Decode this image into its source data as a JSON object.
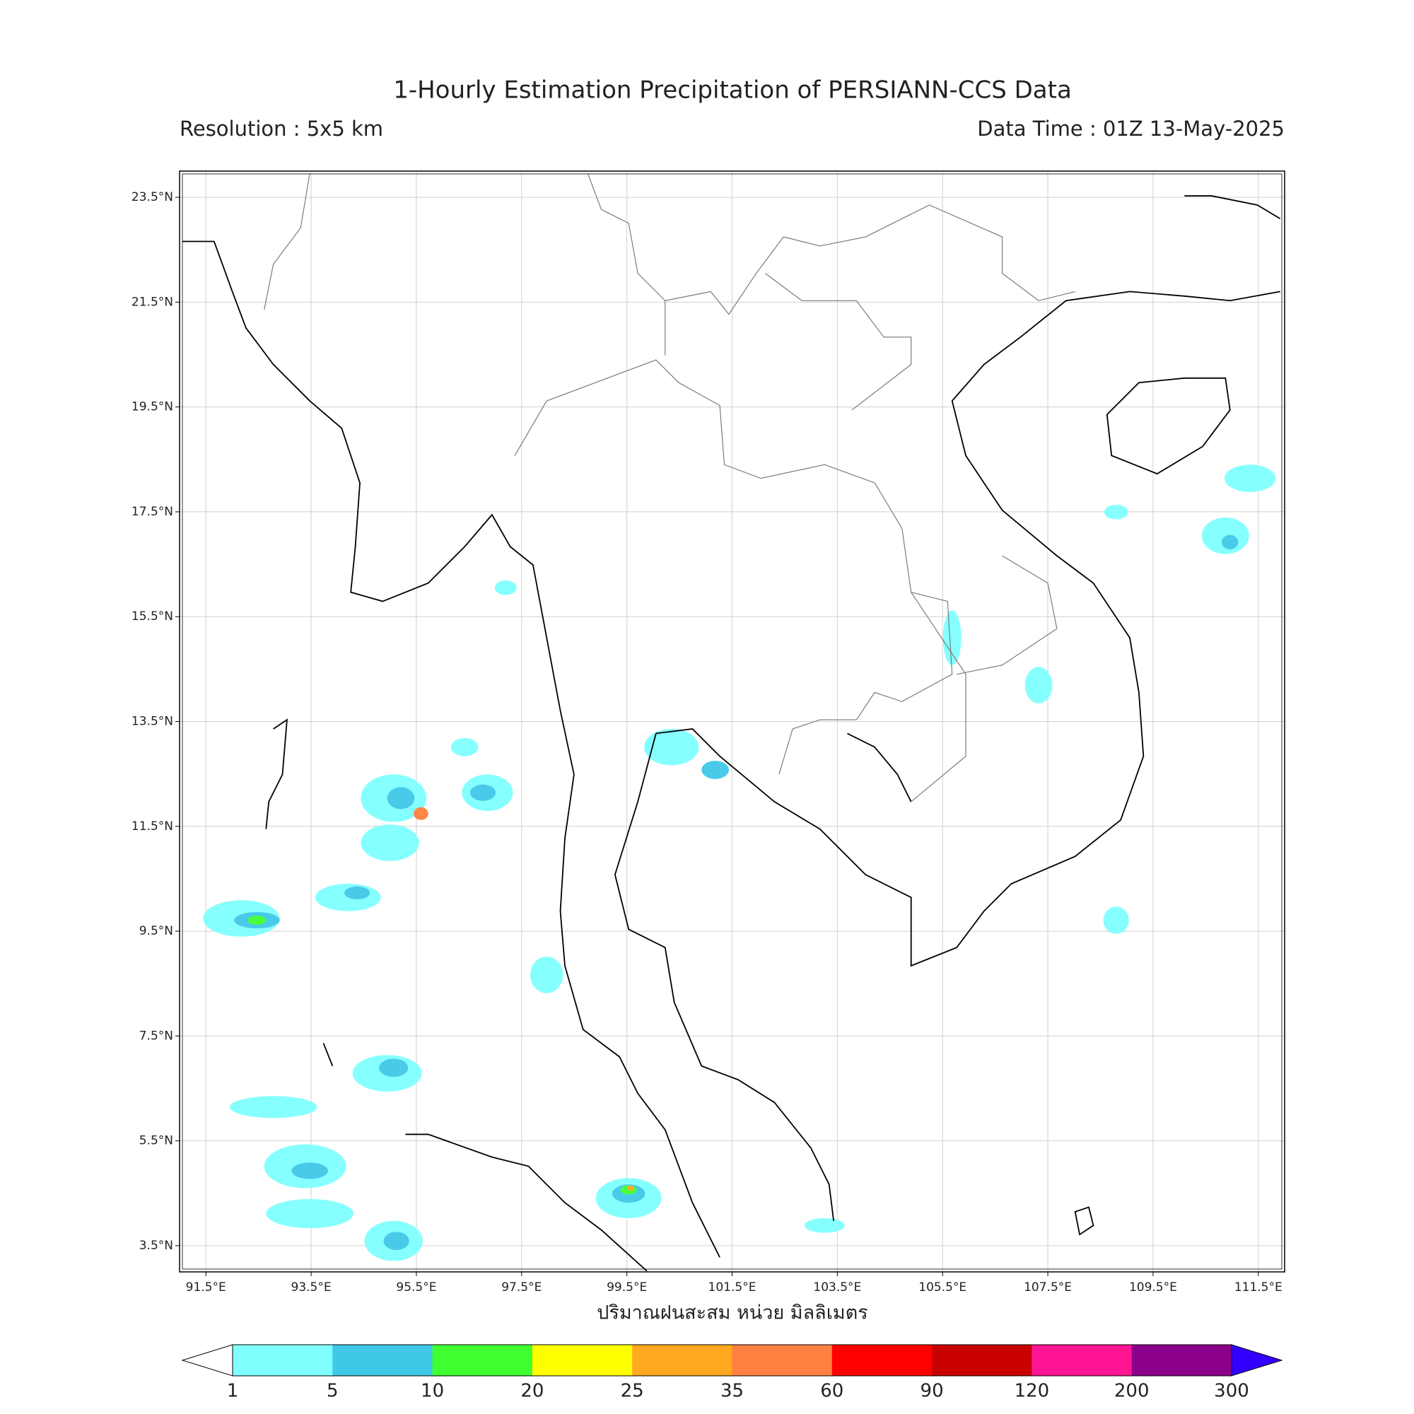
{
  "header": {
    "title": "1-Hourly Estimation Precipitation of PERSIANN-CCS Data",
    "resolution": "Resolution : 5x5 km",
    "data_time": "Data Time : 01Z 13-May-2025"
  },
  "map": {
    "xlim": [
      91,
      112
    ],
    "ylim": [
      3,
      24
    ],
    "xticks": [
      {
        "value": 91.5,
        "label": "91.5°E"
      },
      {
        "value": 93.5,
        "label": "93.5°E"
      },
      {
        "value": 95.5,
        "label": "95.5°E"
      },
      {
        "value": 97.5,
        "label": "97.5°E"
      },
      {
        "value": 99.5,
        "label": "99.5°E"
      },
      {
        "value": 101.5,
        "label": "101.5°E"
      },
      {
        "value": 103.5,
        "label": "103.5°E"
      },
      {
        "value": 105.5,
        "label": "105.5°E"
      },
      {
        "value": 107.5,
        "label": "107.5°E"
      },
      {
        "value": 109.5,
        "label": "109.5°E"
      },
      {
        "value": 111.5,
        "label": "111.5°E"
      }
    ],
    "yticks": [
      {
        "value": 3.5,
        "label": "3.5°N"
      },
      {
        "value": 5.5,
        "label": "5.5°N"
      },
      {
        "value": 7.5,
        "label": "7.5°N"
      },
      {
        "value": 9.5,
        "label": "9.5°N"
      },
      {
        "value": 11.5,
        "label": "11.5°N"
      },
      {
        "value": 13.5,
        "label": "13.5°N"
      },
      {
        "value": 15.5,
        "label": "15.5°N"
      },
      {
        "value": 17.5,
        "label": "17.5°N"
      },
      {
        "value": 19.5,
        "label": "19.5°N"
      },
      {
        "value": 21.5,
        "label": "21.5°N"
      },
      {
        "value": 23.5,
        "label": "23.5°N"
      }
    ],
    "grid": true
  },
  "colorbar": {
    "label": "ปริมาณฝนสะสม หน่วย มิลลิเมตร",
    "bounds": [
      1,
      5,
      10,
      20,
      25,
      35,
      60,
      90,
      120,
      200,
      300
    ],
    "colors": [
      "#80ffff",
      "#40c8e8",
      "#40ff30",
      "#ffff00",
      "#ffa820",
      "#ff8040",
      "#ff0000",
      "#c80000",
      "#ff1493",
      "#8b008b"
    ],
    "under_color": "#ffffff",
    "over_color": "#3300ff"
  }
}
